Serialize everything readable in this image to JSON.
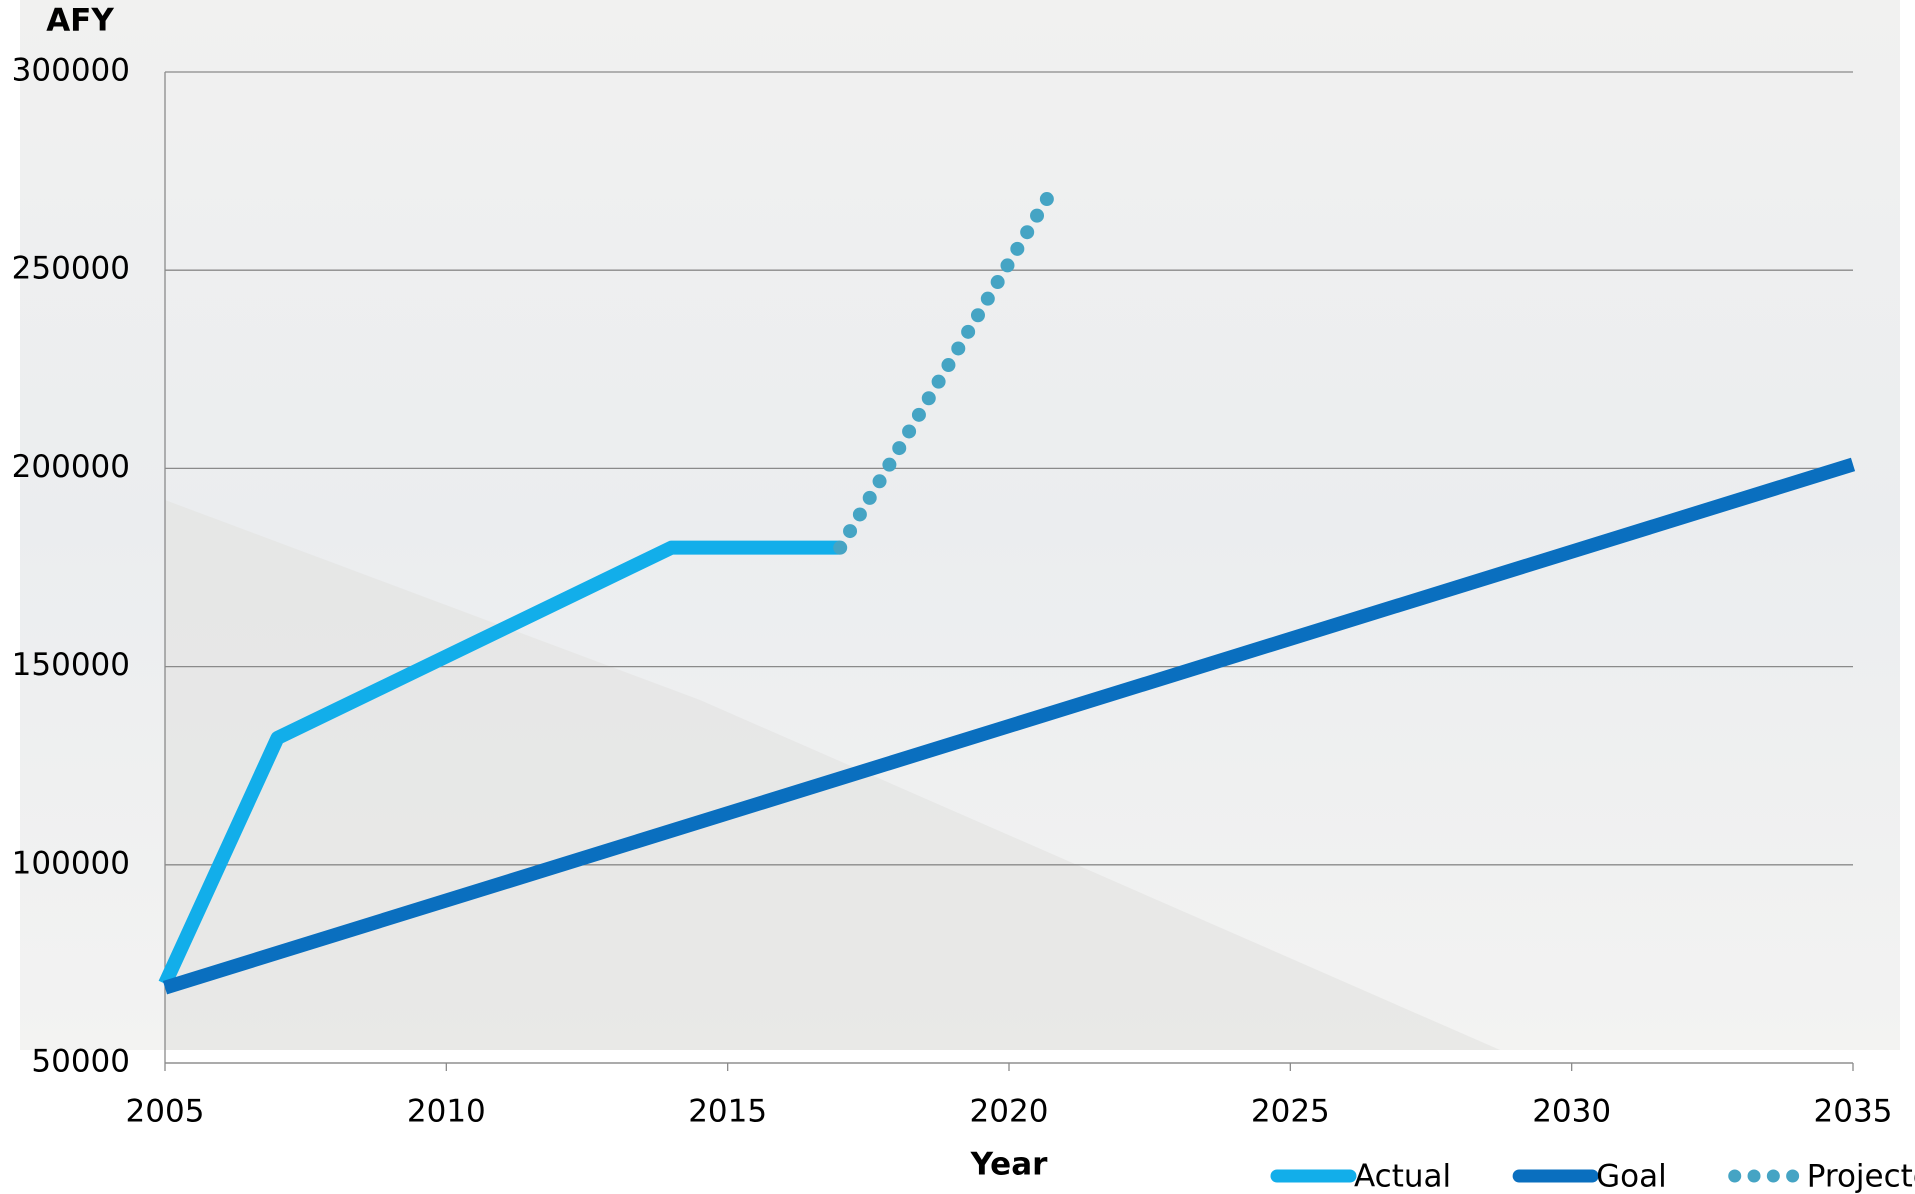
{
  "chart_data": {
    "type": "line",
    "y_label": "AFY",
    "x_label": "Year",
    "xlim": [
      2005,
      2035
    ],
    "xticks": [
      2005,
      2010,
      2015,
      2020,
      2025,
      2030,
      2035
    ],
    "ylim": [
      50000,
      300000
    ],
    "yticks": [
      50000,
      100000,
      150000,
      200000,
      250000,
      300000
    ],
    "grid": true,
    "legend": "bottom-right",
    "series": [
      {
        "name": "Actual",
        "color": "#12aeea",
        "style": "solid",
        "x": [
          2005,
          2007,
          2014,
          2017
        ],
        "values": [
          70000,
          132000,
          180000,
          180000
        ]
      },
      {
        "name": "Goal",
        "color": "#0a6fbf",
        "style": "solid",
        "x": [
          2005,
          2035
        ],
        "values": [
          69000,
          201000
        ]
      },
      {
        "name": "Projected",
        "color": "#45a4c4",
        "style": "dotted",
        "x": [
          2017,
          2020.8
        ],
        "values": [
          180000,
          271000
        ]
      }
    ]
  }
}
